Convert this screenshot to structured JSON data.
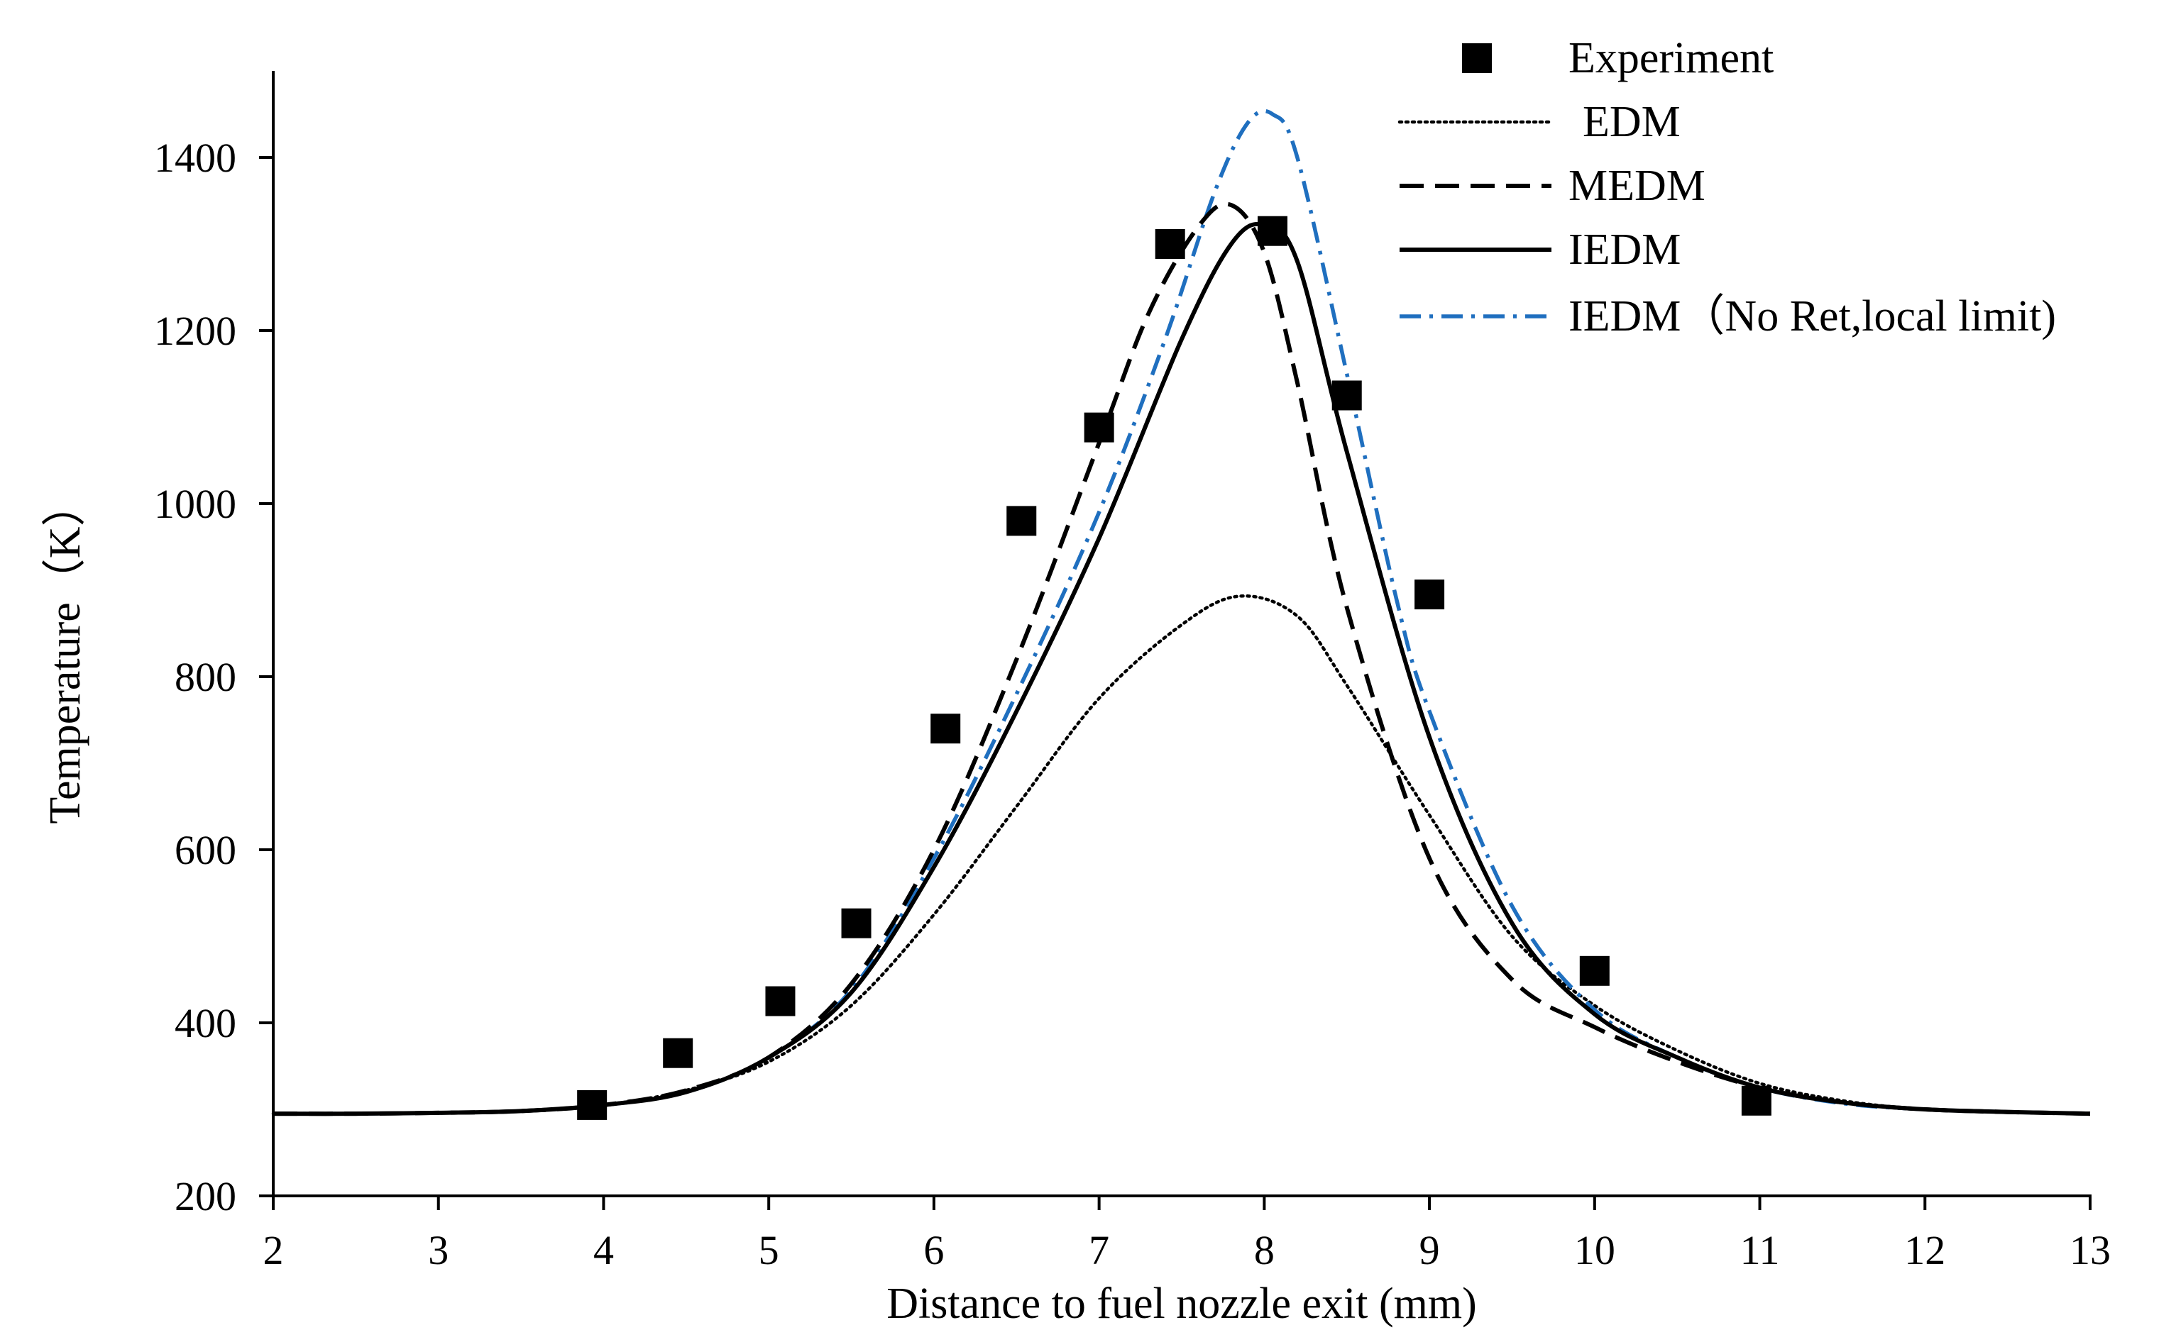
{
  "chart_data": {
    "type": "line",
    "title": "",
    "xlabel": "Distance to fuel nozzle exit (mm)",
    "ylabel": "Temperature（K）",
    "xlim": [
      2,
      13
    ],
    "ylim": [
      200,
      1500
    ],
    "xticks": [
      2,
      3,
      4,
      5,
      6,
      7,
      8,
      9,
      10,
      11,
      12,
      13
    ],
    "yticks": [
      200,
      400,
      600,
      800,
      1000,
      1200,
      1400
    ],
    "grid": false,
    "legend_position": "top-right",
    "series": [
      {
        "name": "Experiment",
        "kind": "marker",
        "style": "square",
        "color": "#000000",
        "x": [
          3.93,
          4.45,
          5.07,
          5.53,
          6.07,
          6.53,
          7.0,
          7.43,
          8.05,
          8.5,
          9.0,
          10.0,
          10.98
        ],
        "y": [
          305,
          365,
          425,
          515,
          740,
          980,
          1088,
          1300,
          1315,
          1125,
          895,
          460,
          310
        ]
      },
      {
        "name": "EDM",
        "kind": "line",
        "style": "dotted",
        "color": "#000000",
        "x": [
          2.0,
          2.5,
          3.0,
          3.5,
          4.0,
          4.5,
          5.0,
          5.5,
          6.0,
          6.5,
          7.0,
          7.5,
          7.85,
          8.2,
          8.5,
          9.0,
          9.5,
          10.0,
          10.5,
          11.0,
          11.5,
          12.0,
          12.5,
          13.0
        ],
        "y": [
          295,
          295,
          296,
          298,
          305,
          322,
          355,
          420,
          525,
          650,
          775,
          860,
          893,
          870,
          790,
          640,
          500,
          420,
          368,
          330,
          310,
          300,
          297,
          295
        ]
      },
      {
        "name": "MEDM",
        "kind": "line",
        "style": "dashed",
        "color": "#000000",
        "x": [
          2.0,
          2.5,
          3.0,
          3.5,
          4.0,
          4.5,
          5.0,
          5.5,
          6.0,
          6.5,
          7.0,
          7.3,
          7.6,
          7.8,
          8.0,
          8.2,
          8.5,
          9.0,
          9.5,
          10.0,
          10.5,
          11.0,
          11.5,
          12.0,
          12.5,
          13.0
        ],
        "y": [
          295,
          295,
          296,
          298,
          305,
          322,
          360,
          445,
          600,
          820,
          1070,
          1220,
          1320,
          1345,
          1290,
          1140,
          880,
          590,
          450,
          395,
          355,
          325,
          308,
          300,
          297,
          295
        ]
      },
      {
        "name": "IEDM",
        "kind": "line",
        "style": "solid",
        "color": "#000000",
        "x": [
          2.0,
          2.5,
          3.0,
          3.5,
          4.0,
          4.5,
          5.0,
          5.5,
          6.0,
          6.5,
          7.0,
          7.5,
          7.8,
          8.0,
          8.2,
          8.5,
          9.0,
          9.5,
          10.0,
          10.5,
          11.0,
          11.5,
          12.0,
          12.5,
          13.0
        ],
        "y": [
          295,
          295,
          296,
          298,
          305,
          320,
          360,
          435,
          580,
          760,
          960,
          1190,
          1300,
          1322,
          1280,
          1060,
          730,
          515,
          410,
          360,
          325,
          308,
          300,
          297,
          295
        ]
      },
      {
        "name": "IEDM（No Ret,local limit)",
        "kind": "line",
        "style": "dash-dot",
        "color": "#1f6fbf",
        "x": [
          2.0,
          2.5,
          3.0,
          3.5,
          4.0,
          4.5,
          5.0,
          5.5,
          6.0,
          6.5,
          7.0,
          7.4,
          7.7,
          7.9,
          8.05,
          8.2,
          8.5,
          8.8,
          9.0,
          9.5,
          10.0,
          10.5,
          11.0,
          11.5,
          12.0,
          12.5,
          13.0
        ],
        "y": [
          295,
          295,
          296,
          298,
          305,
          320,
          360,
          438,
          590,
          780,
          990,
          1190,
          1360,
          1440,
          1450,
          1400,
          1150,
          890,
          760,
          535,
          415,
          360,
          325,
          307,
          300,
          297,
          295
        ]
      }
    ]
  }
}
